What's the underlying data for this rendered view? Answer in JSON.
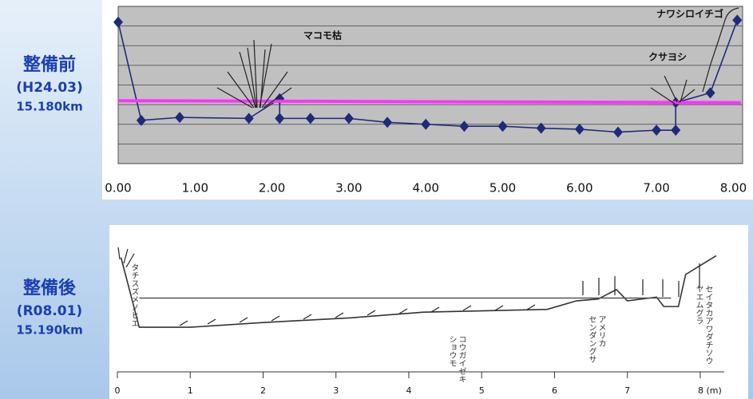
{
  "labels": [
    {
      "title": "整備前",
      "date": "(H24.03)",
      "km": "15.180km"
    },
    {
      "title": "整備後",
      "date": "(R08.01)",
      "km": "15.190km"
    }
  ],
  "chart_data": [
    {
      "type": "line",
      "series": [
        {
          "color": "#1f2a7a",
          "marker": "diamond",
          "x": [
            0.0,
            0.3,
            0.8,
            1.7,
            2.1,
            2.1,
            2.5,
            3.0,
            3.5,
            4.0,
            4.5,
            5.0,
            5.5,
            6.0,
            6.5,
            7.0,
            7.25,
            7.25,
            7.7,
            8.05
          ],
          "values": [
            7.2,
            2.2,
            2.35,
            2.3,
            3.3,
            2.3,
            2.3,
            2.3,
            2.1,
            2.0,
            1.9,
            1.9,
            1.8,
            1.75,
            1.6,
            1.7,
            1.7,
            3.1,
            3.6,
            7.3
          ]
        },
        {
          "color": "#ff33ff",
          "x": [
            0.0,
            8.1
          ],
          "values": [
            3.2,
            3.1
          ]
        }
      ],
      "annotations": [
        "マコモ枯",
        "ナワシロイチゴ",
        "クサヨシ"
      ],
      "xlim": [
        0,
        8.12
      ],
      "ylim": [
        0,
        8
      ],
      "xticks": [
        {
          "value": 0,
          "label": "0.00"
        },
        {
          "value": 1,
          "label": "1.00"
        },
        {
          "value": 2,
          "label": "2.00"
        },
        {
          "value": 3,
          "label": "3.00"
        },
        {
          "value": 4,
          "label": "4.00"
        },
        {
          "value": 5,
          "label": "5.00"
        },
        {
          "value": 6,
          "label": "6.00"
        },
        {
          "value": 7,
          "label": "7.00"
        },
        {
          "value": 8,
          "label": "8.00"
        }
      ],
      "yticks": [
        0,
        1,
        2,
        3,
        4,
        5,
        6,
        7,
        8
      ],
      "grid": true,
      "background": "#c0c0c0"
    },
    {
      "type": "line",
      "series": [
        {
          "color": "#333333",
          "x": [
            0.05,
            0.3,
            1.0,
            2.0,
            3.2,
            4.2,
            5.9,
            6.3,
            6.6,
            6.85,
            7.0,
            7.4,
            7.5,
            7.7,
            7.8,
            8.22
          ],
          "values": [
            5.9,
            2.2,
            2.2,
            2.45,
            2.7,
            3.0,
            3.15,
            3.6,
            3.7,
            4.2,
            3.6,
            3.8,
            3.3,
            3.3,
            5.0,
            6.0
          ]
        },
        {
          "color": "#555555",
          "x": [
            0.3,
            7.6
          ],
          "values": [
            3.75,
            3.75
          ]
        }
      ],
      "annotations": [
        [
          "タチスズメノヒエ"
        ],
        [
          "コウガイゼキ",
          "ショウモ"
        ],
        [
          "アメリカ",
          "センダングサ"
        ],
        [
          "セイタカアワダチソウ",
          "ヤエムグラ"
        ]
      ],
      "xlim": [
        0,
        8.22
      ],
      "ylim": [
        0,
        7.5
      ],
      "xticks": [
        0,
        1,
        2,
        3,
        4,
        5,
        6,
        7,
        {
          "value": 8,
          "label": "8 (m)"
        }
      ],
      "grid": false,
      "background": "#ffffff"
    }
  ]
}
